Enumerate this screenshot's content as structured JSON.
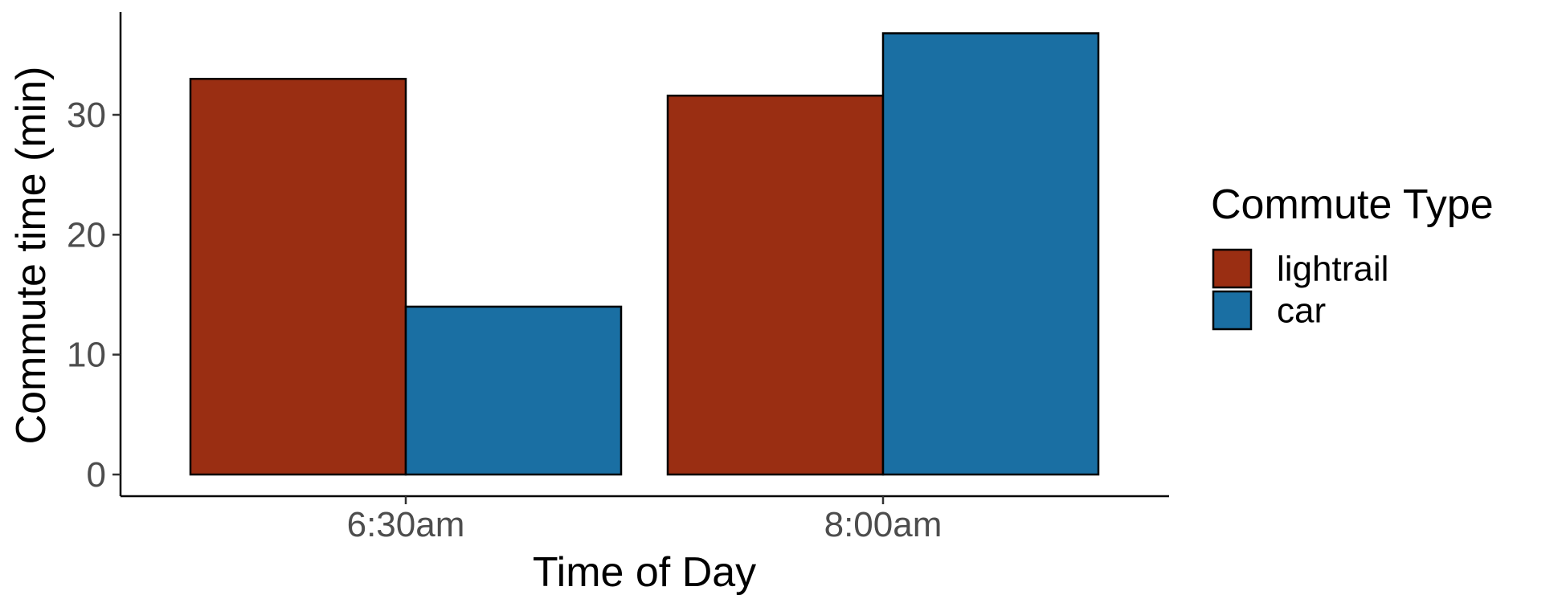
{
  "chart_data": {
    "type": "bar",
    "title": "",
    "xlabel": "Time of Day",
    "ylabel": "Commute time (min)",
    "categories": [
      "6:30am",
      "8:00am"
    ],
    "series": [
      {
        "name": "lightrail",
        "values": [
          33,
          31.6
        ],
        "color": "#9A2E12"
      },
      {
        "name": "car",
        "values": [
          14,
          36.8
        ],
        "color": "#1A6FA3"
      }
    ],
    "ylim": [
      0,
      38.5
    ],
    "yticks": [
      0,
      10,
      20,
      30
    ],
    "grid": false,
    "legend": {
      "title": "Commute Type",
      "position": "right"
    }
  }
}
